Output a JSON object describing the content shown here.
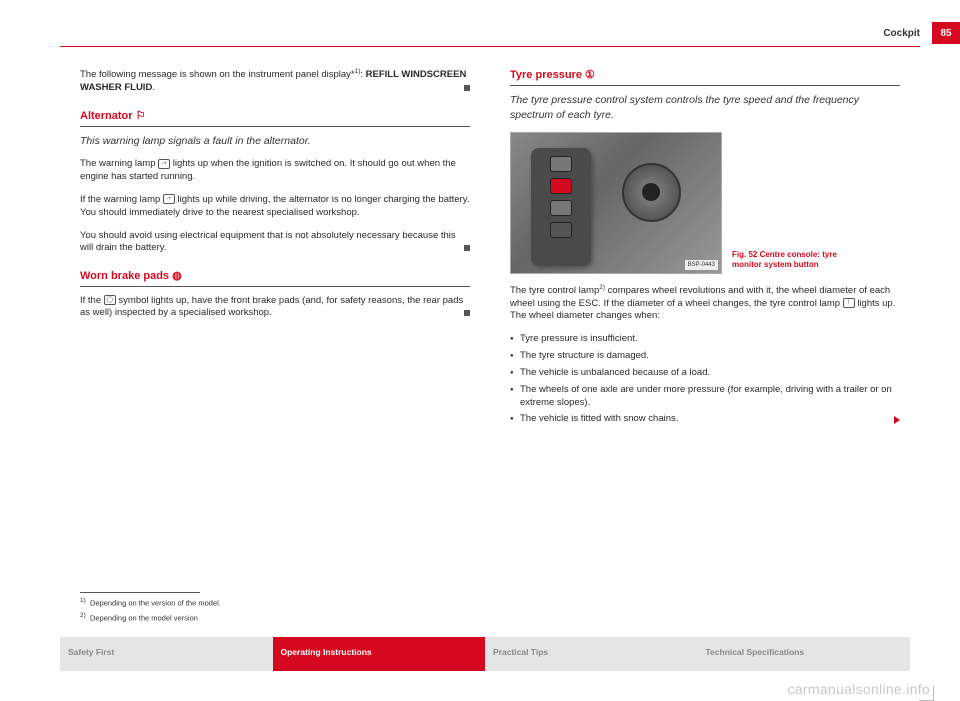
{
  "header": {
    "section": "Cockpit",
    "page_number": "85"
  },
  "left_col": {
    "intro_text": "The following message is shown on the instrument panel display*",
    "intro_sup": "1)",
    "intro_tail": ": ",
    "intro_bold": "REFILL WINDSCREEN WASHER FLUID",
    "intro_period": ".",
    "alternator": {
      "title": "Alternator ⚐",
      "subtitle": "This warning lamp signals a fault in the alternator.",
      "p1a": "The warning lamp ",
      "p1b": " lights up when the ignition is switched on. It should go out when the engine has started running.",
      "p2a": "If the warning lamp ",
      "p2b": " lights up while driving, the alternator is no longer charging the battery. You should immediately drive to the nearest specialised workshop.",
      "p3": "You should avoid using electrical equipment that is not absolutely necessary because this will drain the battery."
    },
    "worn_pads": {
      "title": "Worn brake pads ◍",
      "p1a": "If the ",
      "p1b": " symbol lights up, have the front brake pads (and, for safety reasons, the rear pads as well) inspected by a specialised workshop."
    }
  },
  "right_col": {
    "tyre": {
      "title": "Tyre pressure ①",
      "subtitle": "The tyre pressure control system controls the tyre speed and the frequency spectrum of each tyre.",
      "fig_caption": "Fig. 52  Centre console: tyre monitor system button",
      "fig_ref": "BSP-0443",
      "p1a": "The tyre control lamp",
      "p1sup": "2)",
      "p1b": " compares wheel revolutions and with it, the wheel diameter of each wheel using the ESC. If the diameter of a wheel changes, the tyre control lamp ",
      "p1c": " lights up. The wheel diameter changes when:",
      "bullets": [
        "Tyre pressure is insufficient.",
        "The tyre structure is damaged.",
        "The vehicle is unbalanced because of a load.",
        "The wheels of one axle are under more pressure (for example, driving with a trailer or on extreme slopes).",
        "The vehicle is fitted with snow chains."
      ]
    }
  },
  "footnotes": {
    "f1_num": "1)",
    "f1_text": "Depending on the version of the model.",
    "f2_num": "2)",
    "f2_text": "Depending on the model version"
  },
  "nav": {
    "safety": "Safety First",
    "operating": "Operating Instructions",
    "practical": "Practical Tips",
    "technical": "Technical Specifications"
  },
  "watermark": "carmanualsonline.info",
  "colors": {
    "brand_red": "#d4091f",
    "text": "#2a2a2a",
    "muted": "#888888",
    "nav_bg": "#e5e5e5"
  }
}
